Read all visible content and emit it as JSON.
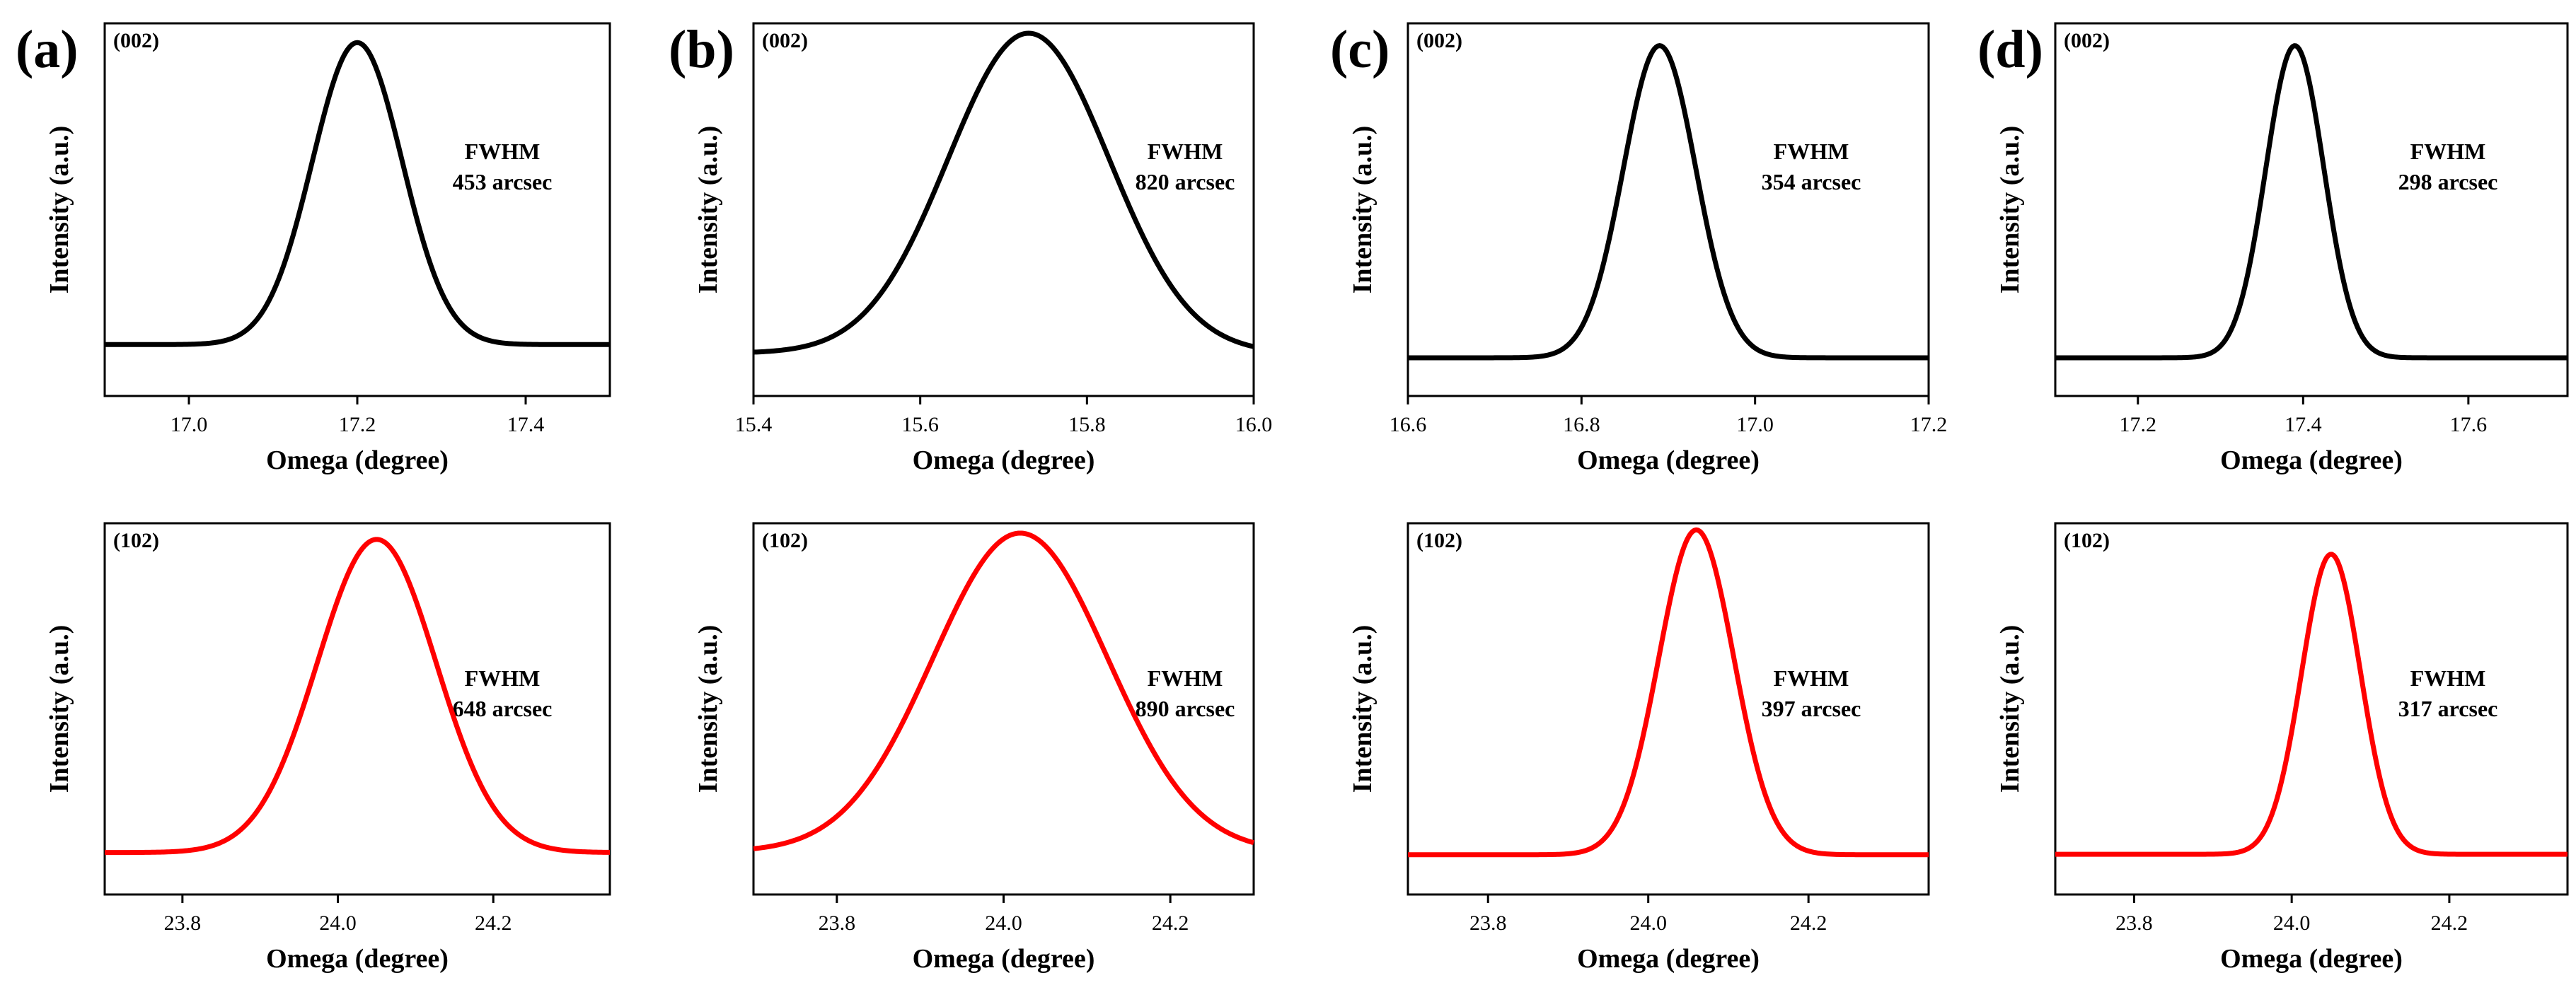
{
  "figure": {
    "panels": [
      {
        "letter": "(a)",
        "rows": [
          {
            "reflection": "(002)",
            "fwhm_label": "FWHM",
            "fwhm_value": "453 arcsec"
          },
          {
            "reflection": "(102)",
            "fwhm_label": "FWHM",
            "fwhm_value": "648 arcsec"
          }
        ]
      },
      {
        "letter": "(b)",
        "rows": [
          {
            "reflection": "(002)",
            "fwhm_label": "FWHM",
            "fwhm_value": "820 arcsec"
          },
          {
            "reflection": "(102)",
            "fwhm_label": "FWHM",
            "fwhm_value": "890 arcsec"
          }
        ]
      },
      {
        "letter": "(c)",
        "rows": [
          {
            "reflection": "(002)",
            "fwhm_label": "FWHM",
            "fwhm_value": "354 arcsec"
          },
          {
            "reflection": "(102)",
            "fwhm_label": "FWHM",
            "fwhm_value": "397 arcsec"
          }
        ]
      },
      {
        "letter": "(d)",
        "rows": [
          {
            "reflection": "(002)",
            "fwhm_label": "FWHM",
            "fwhm_value": "298 arcsec"
          },
          {
            "reflection": "(102)",
            "fwhm_label": "FWHM",
            "fwhm_value": "317 arcsec"
          }
        ]
      }
    ]
  },
  "chart_data": [
    {
      "id": "a-002",
      "type": "line",
      "panel": "(a)",
      "reflection": "(002)",
      "xlabel": "Omega (degree)",
      "ylabel": "Intensity (a.u.)",
      "xlim": [
        16.9,
        17.5
      ],
      "xticks": [
        "17.0",
        "17.2",
        "17.4"
      ],
      "color": "#000000",
      "peak_center": 17.2,
      "fwhm_arcsec": 453,
      "baseline": 0.06,
      "peak": 1.0,
      "ylim": [
        -0.1,
        1.06
      ]
    },
    {
      "id": "b-002",
      "type": "line",
      "panel": "(b)",
      "reflection": "(002)",
      "xlabel": "Omega (degree)",
      "ylabel": "Intensity (a.u.)",
      "xlim": [
        15.4,
        16.0
      ],
      "xticks": [
        "15.4",
        "15.6",
        "15.8",
        "16.0"
      ],
      "color": "#000000",
      "peak_center": 15.73,
      "fwhm_arcsec": 820,
      "baseline": 0.03,
      "peak": 1.0,
      "ylim": [
        -0.1,
        1.03
      ]
    },
    {
      "id": "c-002",
      "type": "line",
      "panel": "(c)",
      "reflection": "(002)",
      "xlabel": "Omega (degree)",
      "ylabel": "Intensity (a.u.)",
      "xlim": [
        16.6,
        17.2
      ],
      "xticks": [
        "16.6",
        "16.8",
        "17.0",
        "17.2"
      ],
      "color": "#000000",
      "peak_center": 16.89,
      "fwhm_arcsec": 354,
      "baseline": 0.02,
      "peak": 1.0,
      "ylim": [
        -0.1,
        1.07
      ]
    },
    {
      "id": "d-002",
      "type": "line",
      "panel": "(d)",
      "reflection": "(002)",
      "xlabel": "Omega (degree)",
      "ylabel": "Intensity (a.u.)",
      "xlim": [
        17.1,
        17.72
      ],
      "xticks": [
        "17.2",
        "17.4",
        "17.6"
      ],
      "color": "#000000",
      "peak_center": 17.39,
      "fwhm_arcsec": 298,
      "baseline": 0.02,
      "peak": 1.0,
      "ylim": [
        -0.1,
        1.07
      ]
    },
    {
      "id": "a-102",
      "type": "line",
      "panel": "(a)",
      "reflection": "(102)",
      "xlabel": "Omega (degree)",
      "ylabel": "Intensity (a.u.)",
      "xlim": [
        23.7,
        24.35
      ],
      "xticks": [
        "23.8",
        "24.0",
        "24.2"
      ],
      "color": "#ff0000",
      "peak_center": 24.05,
      "fwhm_arcsec": 648,
      "baseline": 0.03,
      "peak": 1.0,
      "ylim": [
        -0.1,
        1.05
      ]
    },
    {
      "id": "b-102",
      "type": "line",
      "panel": "(b)",
      "reflection": "(102)",
      "xlabel": "Omega (degree)",
      "ylabel": "Intensity (a.u.)",
      "xlim": [
        23.7,
        24.3
      ],
      "xticks": [
        "23.8",
        "24.0",
        "24.2"
      ],
      "color": "#ff0000",
      "peak_center": 24.02,
      "fwhm_arcsec": 890,
      "baseline": 0.03,
      "peak": 1.0,
      "ylim": [
        -0.1,
        1.03
      ]
    },
    {
      "id": "c-102",
      "type": "line",
      "panel": "(c)",
      "reflection": "(102)",
      "xlabel": "Omega (degree)",
      "ylabel": "Intensity (a.u.)",
      "xlim": [
        23.7,
        24.35
      ],
      "xticks": [
        "23.8",
        "24.0",
        "24.2"
      ],
      "color": "#ff0000",
      "peak_center": 24.06,
      "fwhm_arcsec": 397,
      "baseline": 0.02,
      "peak": 1.0,
      "ylim": [
        -0.1,
        1.02
      ]
    },
    {
      "id": "d-102",
      "type": "line",
      "panel": "(d)",
      "reflection": "(102)",
      "xlabel": "Omega (degree)",
      "ylabel": "Intensity (a.u.)",
      "xlim": [
        23.7,
        24.35
      ],
      "xticks": [
        "23.8",
        "24.0",
        "24.2"
      ],
      "color": "#ff0000",
      "peak_center": 24.05,
      "fwhm_arcsec": 317,
      "baseline": 0.03,
      "peak": 1.0,
      "ylim": [
        -0.1,
        1.1
      ]
    }
  ]
}
